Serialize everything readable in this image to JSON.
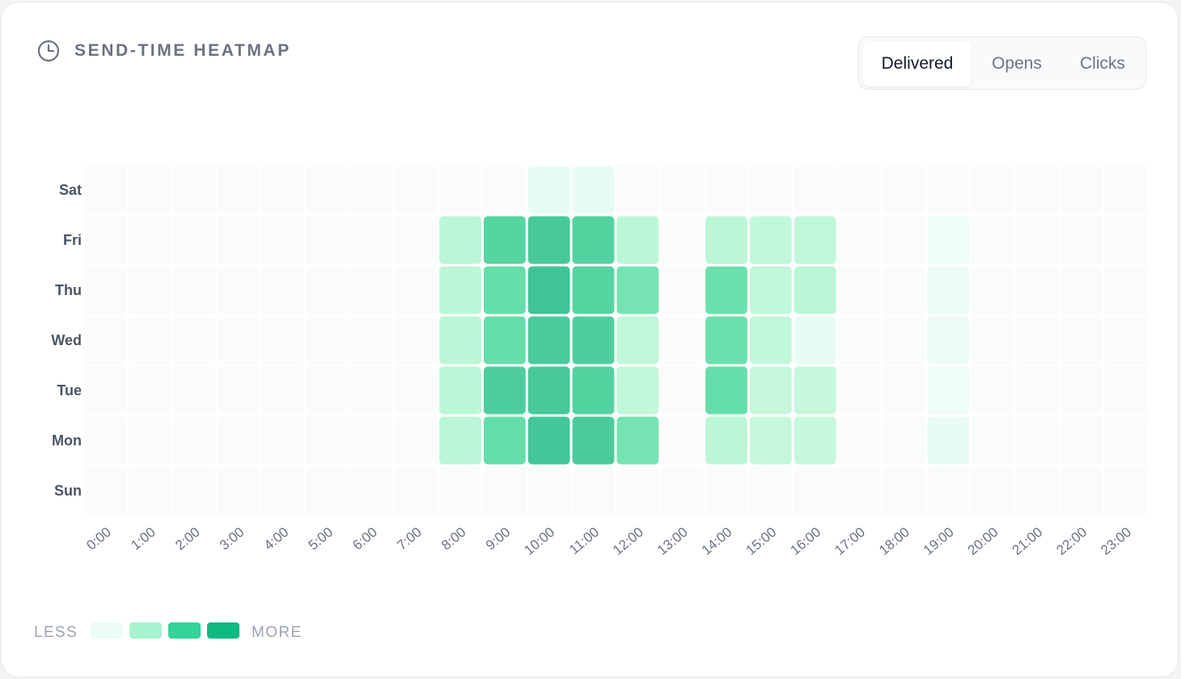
{
  "header": {
    "title": "SEND-TIME HEATMAP",
    "icon": "clock-icon"
  },
  "tabs": [
    {
      "label": "Delivered",
      "active": true
    },
    {
      "label": "Opens",
      "active": false
    },
    {
      "label": "Clicks",
      "active": false
    }
  ],
  "legend": {
    "less_label": "LESS",
    "more_label": "MORE",
    "colors": [
      "#ecfdf5",
      "#a7f3d0",
      "#34d399",
      "#10b981"
    ]
  },
  "chart_data": {
    "type": "heatmap",
    "title": "",
    "xlabel": "",
    "ylabel": "",
    "x": [
      "0:00",
      "1:00",
      "2:00",
      "3:00",
      "4:00",
      "5:00",
      "6:00",
      "7:00",
      "8:00",
      "9:00",
      "10:00",
      "11:00",
      "12:00",
      "13:00",
      "14:00",
      "15:00",
      "16:00",
      "17:00",
      "18:00",
      "19:00",
      "20:00",
      "21:00",
      "22:00",
      "23:00"
    ],
    "y": [
      "Sat",
      "Fri",
      "Thu",
      "Wed",
      "Tue",
      "Mon",
      "Sun"
    ],
    "y_display": [
      "Sat",
      "Fri",
      "Thu",
      "Wed",
      "Tue",
      "Mon",
      "Sun"
    ],
    "value_range": [
      0,
      100
    ],
    "values": [
      [
        0,
        0,
        0,
        0,
        0,
        0,
        0,
        0,
        0,
        0,
        12,
        12,
        0,
        0,
        0,
        0,
        0,
        0,
        0,
        0,
        0,
        0,
        0,
        0
      ],
      [
        0,
        0,
        0,
        0,
        0,
        0,
        0,
        0,
        35,
        70,
        80,
        72,
        35,
        0,
        35,
        32,
        32,
        0,
        0,
        8,
        0,
        0,
        0,
        0
      ],
      [
        0,
        0,
        0,
        0,
        0,
        0,
        0,
        0,
        35,
        60,
        85,
        70,
        55,
        0,
        58,
        32,
        35,
        0,
        0,
        10,
        0,
        0,
        0,
        0
      ],
      [
        0,
        0,
        0,
        0,
        0,
        0,
        0,
        0,
        35,
        60,
        78,
        75,
        32,
        0,
        58,
        32,
        12,
        0,
        0,
        10,
        0,
        0,
        0,
        0
      ],
      [
        0,
        0,
        0,
        0,
        0,
        0,
        0,
        0,
        35,
        75,
        80,
        72,
        32,
        0,
        60,
        30,
        30,
        0,
        0,
        8,
        0,
        0,
        0,
        0
      ],
      [
        0,
        0,
        0,
        0,
        0,
        0,
        0,
        0,
        35,
        60,
        82,
        78,
        55,
        0,
        35,
        30,
        30,
        0,
        0,
        12,
        0,
        0,
        0,
        0
      ],
      [
        0,
        0,
        0,
        0,
        0,
        0,
        0,
        0,
        0,
        0,
        0,
        0,
        0,
        0,
        0,
        0,
        0,
        0,
        0,
        0,
        0,
        0,
        0,
        0
      ]
    ],
    "grid": false,
    "legend_position": "bottom-left"
  }
}
